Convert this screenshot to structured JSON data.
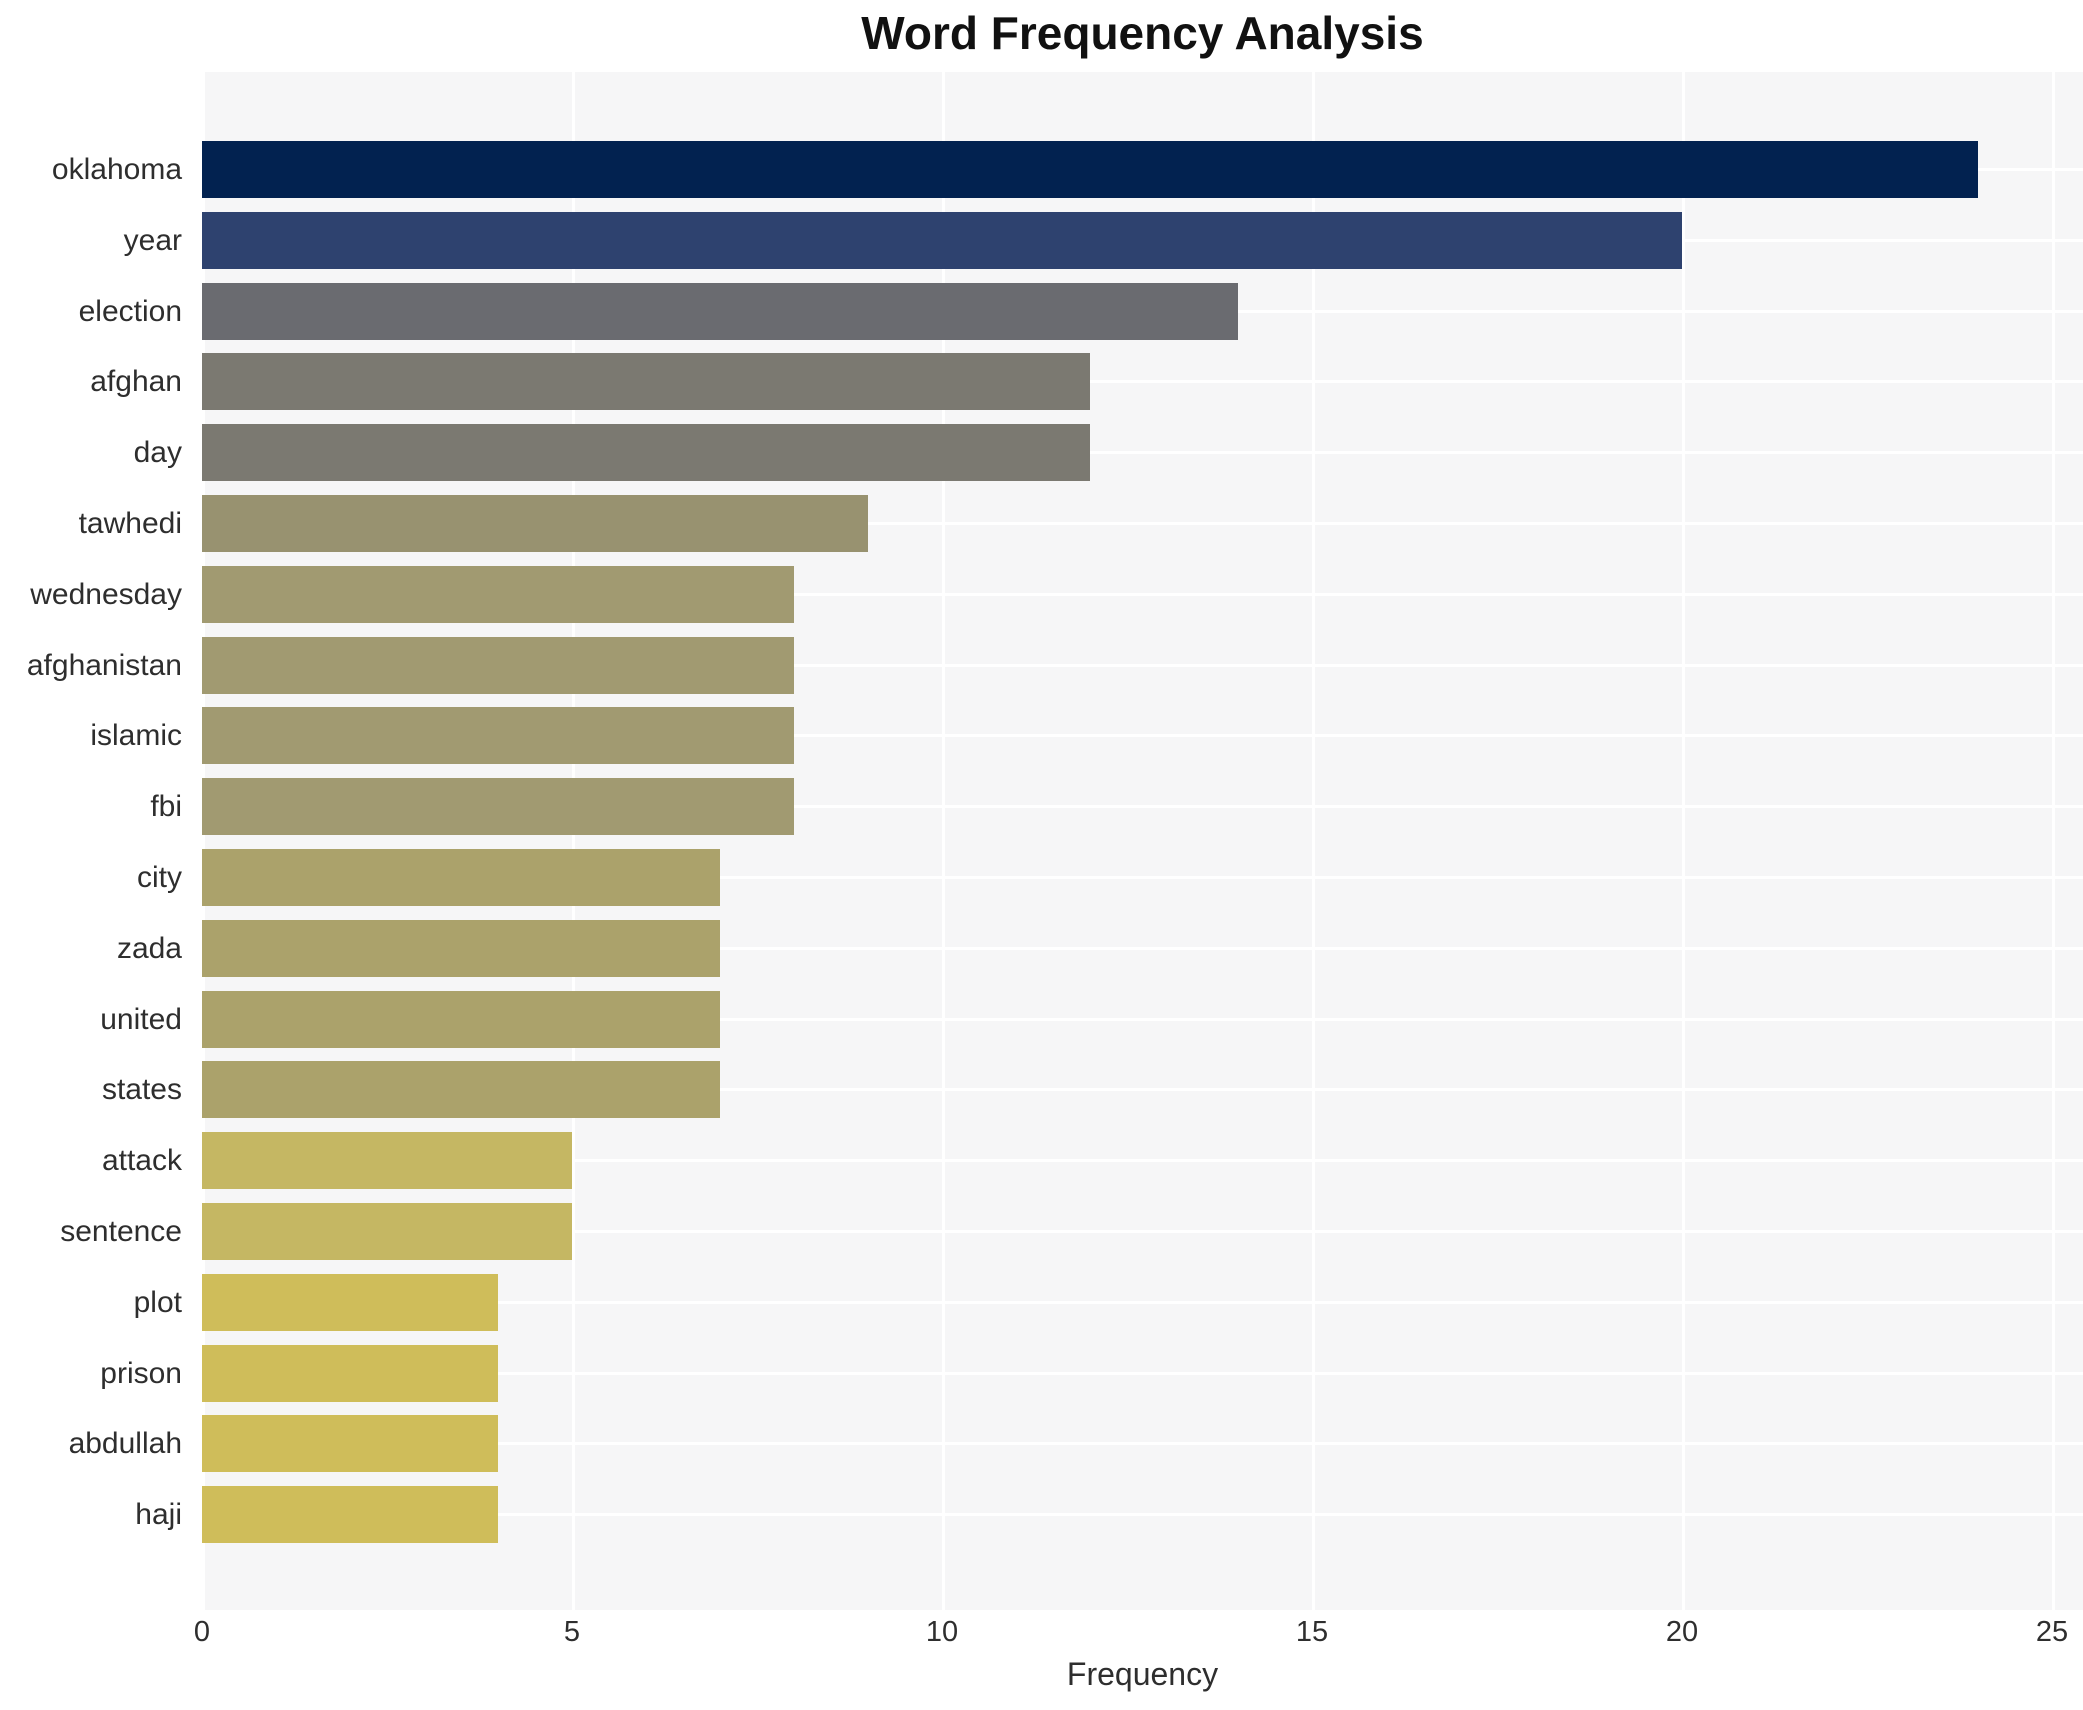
{
  "title": "Word Frequency Analysis",
  "chart_data": {
    "type": "bar",
    "orientation": "horizontal",
    "title": "Word Frequency Analysis",
    "xlabel": "Frequency",
    "ylabel": "",
    "xlim": [
      0,
      25
    ],
    "xticks": [
      "0",
      "5",
      "10",
      "15",
      "20",
      "25"
    ],
    "xtick_values": [
      0,
      5,
      10,
      15,
      20,
      25
    ],
    "grid": true,
    "legend": "none",
    "plot_background": "#f6f6f7",
    "grid_color": "#ffffff",
    "categories": [
      "oklahoma",
      "year",
      "election",
      "afghan",
      "day",
      "tawhedi",
      "wednesday",
      "afghanistan",
      "islamic",
      "fbi",
      "city",
      "zada",
      "united",
      "states",
      "attack",
      "sentence",
      "plot",
      "prison",
      "abdullah",
      "haji"
    ],
    "values": [
      24,
      20,
      14,
      12,
      12,
      9,
      8,
      8,
      8,
      8,
      7,
      7,
      7,
      7,
      5,
      5,
      4,
      4,
      4,
      4
    ],
    "bar_colors": [
      "#022250",
      "#2e426f",
      "#6a6b70",
      "#7b7971",
      "#7b7971",
      "#989270",
      "#a19a71",
      "#a19a71",
      "#a19a71",
      "#a19a71",
      "#aba26b",
      "#aba26b",
      "#aba26b",
      "#aba26b",
      "#c5b763",
      "#c5b763",
      "#cfbd5a",
      "#cfbd5a",
      "#cfbd5a",
      "#cfbd5a"
    ]
  }
}
